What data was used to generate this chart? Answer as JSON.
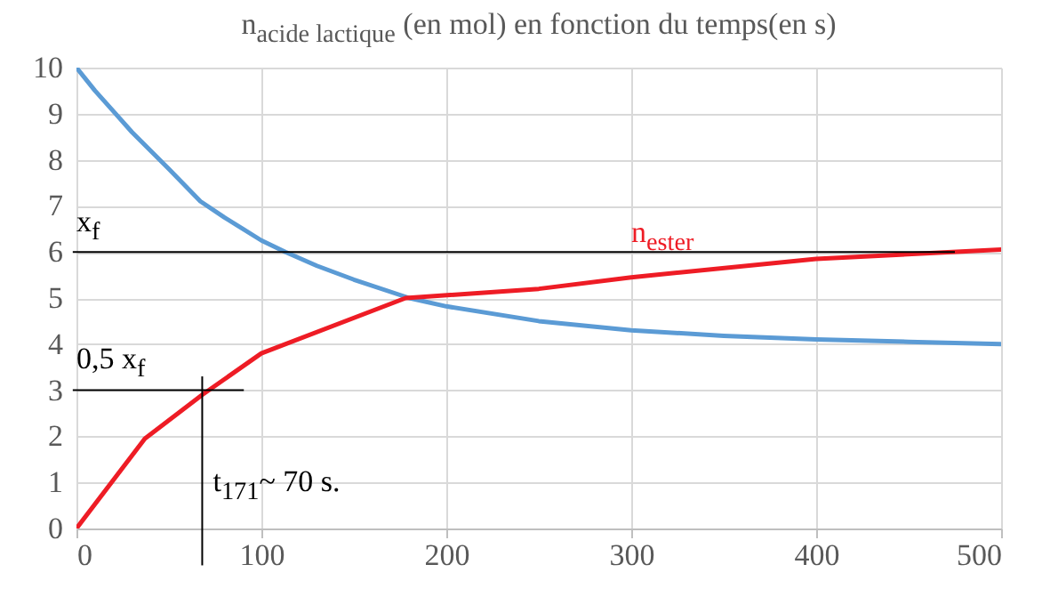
{
  "chart_data": {
    "type": "line",
    "title": "n$_{acide lactique}$ (en mol) en fonction du temps(en s)",
    "xlim": [
      0,
      500
    ],
    "xticks": [
      0,
      100,
      200,
      300,
      400,
      500
    ],
    "ylim": [
      0,
      10
    ],
    "yticks": [
      0,
      1,
      2,
      3,
      4,
      5,
      6,
      7,
      8,
      9,
      10
    ],
    "grid": true,
    "marker": "none",
    "line_style": "solid",
    "series": [
      {
        "color": "#5b9bd5",
        "x": [
          0,
          10,
          20,
          30,
          40,
          50,
          67,
          80,
          100,
          113,
          130,
          150,
          180,
          200,
          250,
          300,
          350,
          400,
          450,
          500
        ],
        "values": [
          10,
          9.5,
          9.05,
          8.6,
          8.2,
          7.8,
          7.1,
          6.75,
          6.25,
          6.0,
          5.7,
          5.4,
          5.0,
          4.82,
          4.5,
          4.3,
          4.18,
          4.1,
          4.05,
          4.0
        ]
      },
      {
        "name": "n$_{ester}$",
        "color": "#ee1c25",
        "x": [
          0,
          37,
          68,
          100,
          178,
          250,
          300,
          400,
          500
        ],
        "values": [
          0,
          1.95,
          2.9,
          3.8,
          5.0,
          5.2,
          5.45,
          5.85,
          6.05
        ]
      }
    ],
    "ref_lines": [
      {
        "axis": "y",
        "value": 6,
        "label": "x$_{f}$",
        "color": "#000000"
      },
      {
        "axis": "y",
        "value": 3,
        "label": "0,5 x$_{f}$",
        "color": "#000000"
      },
      {
        "axis": "x",
        "value": 68,
        "label": "t$_{171}$~ 70 s.",
        "color": "#000000"
      }
    ]
  }
}
